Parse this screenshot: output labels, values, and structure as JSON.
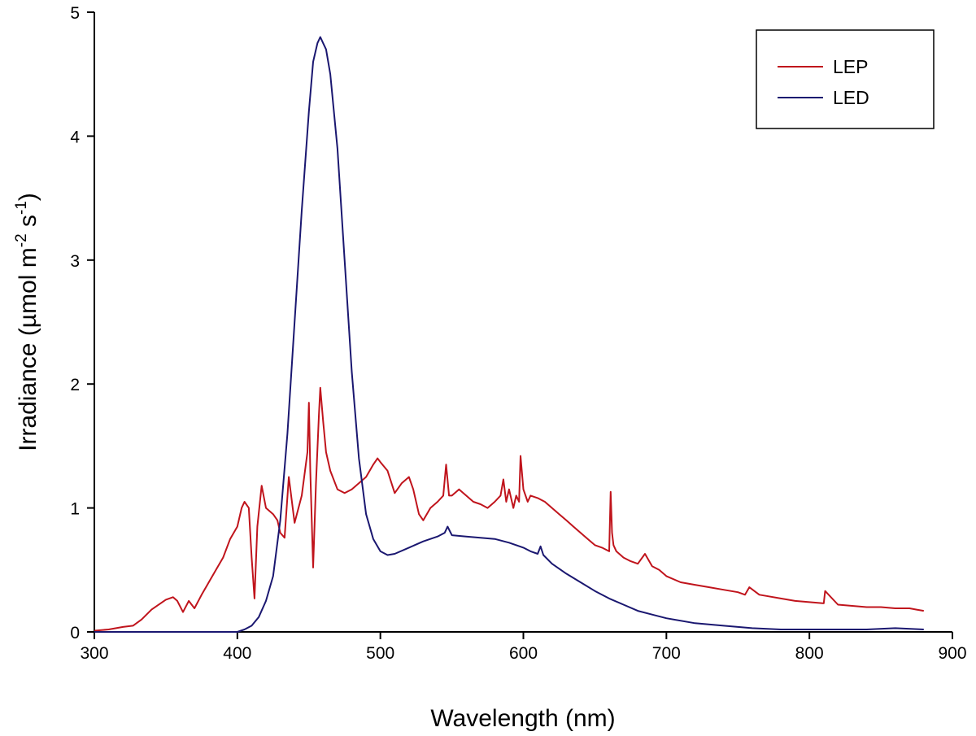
{
  "chart_data": {
    "type": "line",
    "title": "",
    "xlabel": "Wavelength (nm)",
    "ylabel": {
      "main": "Irradiance (µmol m",
      "sup1": "-2",
      "mid": " s",
      "sup2": "-1",
      "end": ")"
    },
    "xlim": [
      300,
      900
    ],
    "ylim": [
      0,
      5
    ],
    "xticks": [
      "300",
      "400",
      "500",
      "600",
      "700",
      "800",
      "900"
    ],
    "yticks": [
      "0",
      "1",
      "2",
      "3",
      "4",
      "5"
    ],
    "grid": false,
    "legend_position": "top-right",
    "series": [
      {
        "name": "LEP",
        "color": "#c0141c",
        "x": [
          300,
          310,
          320,
          327,
          333,
          340,
          350,
          355,
          358,
          362,
          366,
          370,
          375,
          380,
          385,
          390,
          395,
          400,
          403,
          405,
          408,
          410,
          412,
          414,
          417,
          420,
          425,
          428,
          430,
          433,
          436,
          440,
          445,
          449,
          450,
          451,
          453,
          455,
          457,
          458,
          460,
          462,
          465,
          470,
          475,
          480,
          485,
          490,
          495,
          498,
          500,
          505,
          510,
          515,
          520,
          523,
          527,
          530,
          535,
          540,
          544,
          546,
          548,
          550,
          555,
          560,
          565,
          570,
          575,
          580,
          584,
          586,
          588,
          590,
          593,
          595,
          597,
          598,
          600,
          603,
          605,
          610,
          615,
          620,
          625,
          630,
          635,
          640,
          645,
          650,
          655,
          660,
          661,
          662,
          663,
          665,
          670,
          675,
          680,
          685,
          690,
          695,
          700,
          710,
          720,
          730,
          740,
          750,
          755,
          758,
          765,
          770,
          780,
          790,
          800,
          810,
          811,
          820,
          830,
          840,
          850,
          860,
          870,
          875,
          880
        ],
        "y": [
          0.01,
          0.02,
          0.04,
          0.05,
          0.1,
          0.18,
          0.26,
          0.28,
          0.25,
          0.16,
          0.25,
          0.19,
          0.3,
          0.4,
          0.5,
          0.6,
          0.75,
          0.85,
          1.0,
          1.05,
          1.0,
          0.6,
          0.27,
          0.85,
          1.18,
          1.0,
          0.95,
          0.9,
          0.8,
          0.76,
          1.25,
          0.88,
          1.1,
          1.45,
          1.85,
          1.3,
          0.52,
          1.2,
          1.75,
          1.97,
          1.7,
          1.45,
          1.3,
          1.15,
          1.12,
          1.15,
          1.2,
          1.25,
          1.35,
          1.4,
          1.37,
          1.3,
          1.12,
          1.2,
          1.25,
          1.15,
          0.95,
          0.9,
          1.0,
          1.05,
          1.1,
          1.35,
          1.1,
          1.1,
          1.15,
          1.1,
          1.05,
          1.03,
          1.0,
          1.05,
          1.1,
          1.23,
          1.05,
          1.15,
          1.0,
          1.1,
          1.05,
          1.42,
          1.15,
          1.05,
          1.1,
          1.08,
          1.05,
          1.0,
          0.95,
          0.9,
          0.85,
          0.8,
          0.75,
          0.7,
          0.68,
          0.65,
          1.13,
          0.8,
          0.7,
          0.65,
          0.6,
          0.57,
          0.55,
          0.63,
          0.53,
          0.5,
          0.45,
          0.4,
          0.38,
          0.36,
          0.34,
          0.32,
          0.3,
          0.36,
          0.3,
          0.29,
          0.27,
          0.25,
          0.24,
          0.23,
          0.33,
          0.22,
          0.21,
          0.2,
          0.2,
          0.19,
          0.19,
          0.18,
          0.17
        ]
      },
      {
        "name": "LED",
        "color": "#1a1770",
        "x": [
          300,
          320,
          340,
          360,
          380,
          400,
          405,
          410,
          415,
          420,
          425,
          430,
          435,
          440,
          445,
          450,
          453,
          456,
          458,
          460,
          462,
          465,
          470,
          475,
          480,
          485,
          490,
          495,
          500,
          505,
          510,
          520,
          530,
          540,
          545,
          547,
          550,
          560,
          570,
          580,
          590,
          600,
          605,
          610,
          612,
          614,
          620,
          630,
          640,
          650,
          660,
          670,
          680,
          690,
          700,
          720,
          740,
          760,
          780,
          800,
          820,
          840,
          860,
          880
        ],
        "y": [
          0.0,
          0.0,
          0.0,
          0.0,
          0.0,
          0.0,
          0.02,
          0.05,
          0.12,
          0.25,
          0.45,
          0.9,
          1.6,
          2.5,
          3.4,
          4.2,
          4.6,
          4.75,
          4.8,
          4.75,
          4.7,
          4.5,
          3.9,
          3.0,
          2.1,
          1.4,
          0.95,
          0.75,
          0.65,
          0.62,
          0.63,
          0.68,
          0.73,
          0.77,
          0.8,
          0.85,
          0.78,
          0.77,
          0.76,
          0.75,
          0.72,
          0.68,
          0.65,
          0.63,
          0.69,
          0.62,
          0.55,
          0.47,
          0.4,
          0.33,
          0.27,
          0.22,
          0.17,
          0.14,
          0.11,
          0.07,
          0.05,
          0.03,
          0.02,
          0.02,
          0.02,
          0.02,
          0.03,
          0.02
        ]
      }
    ]
  }
}
